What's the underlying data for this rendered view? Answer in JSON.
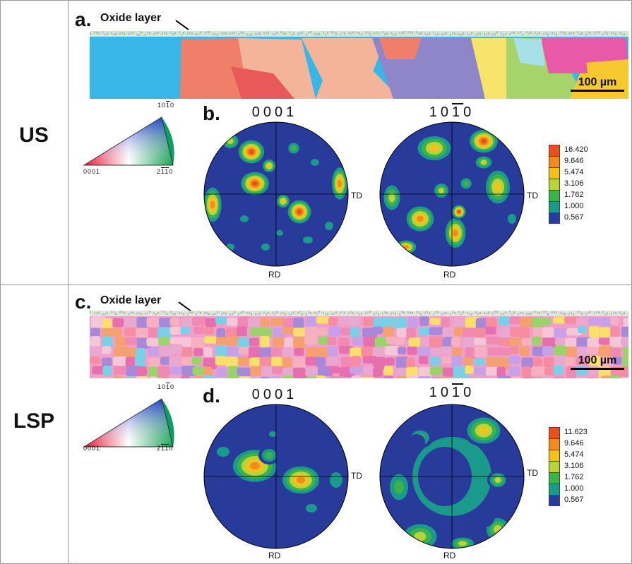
{
  "rows": [
    {
      "label": "US",
      "map_letter": "a.",
      "pf_letter": "b.",
      "oxide_label": "Oxide layer",
      "scale_label": "100 µm",
      "pf_titles": {
        "basal": [
          "0",
          "0",
          "0",
          "1"
        ],
        "prism": [
          "1",
          "0",
          "1",
          "0"
        ]
      },
      "legend_values": [
        "16.420",
        "9.646",
        "5.474",
        "3.106",
        "1.762",
        "1.000",
        "0.567"
      ]
    },
    {
      "label": "LSP",
      "map_letter": "c.",
      "pf_letter": "d.",
      "oxide_label": "Oxide layer",
      "scale_label": "100 µm",
      "pf_titles": {
        "basal": [
          "0",
          "0",
          "0",
          "1"
        ],
        "prism": [
          "1",
          "0",
          "1",
          "0"
        ]
      },
      "legend_values": [
        "11.623",
        "9.646",
        "5.474",
        "3.106",
        "1.762",
        "1.000",
        "0.567"
      ]
    }
  ],
  "axis_labels": {
    "td": "TD",
    "rd": "RD"
  },
  "ipf_triangle": {
    "top": [
      "1",
      "0",
      "1",
      "0"
    ],
    "left": [
      "0",
      "0",
      "0",
      "1"
    ],
    "right": [
      "2",
      "1",
      "1",
      "0"
    ]
  },
  "legend_colors": [
    "#e8501e",
    "#f28c1c",
    "#f5c21a",
    "#b8d43a",
    "#3bb34a",
    "#1a9a8a",
    "#283b9a"
  ],
  "grain_colors_us": [
    "#38b6e8",
    "#f07f6a",
    "#e85a5a",
    "#f4b49a",
    "#8e86c8",
    "#f8e46a",
    "#a6d36a",
    "#a8e0e8",
    "#e85aa8",
    "#f8c830"
  ],
  "grain_colors_lsp": [
    "#f089b4",
    "#e8a8d0",
    "#f5c6d8",
    "#f9e06a",
    "#a888d8",
    "#7ad0e6",
    "#f58ca0",
    "#e76fb0",
    "#c8a0e8",
    "#f7b0c0",
    "#9ad36a",
    "#f4a070"
  ]
}
